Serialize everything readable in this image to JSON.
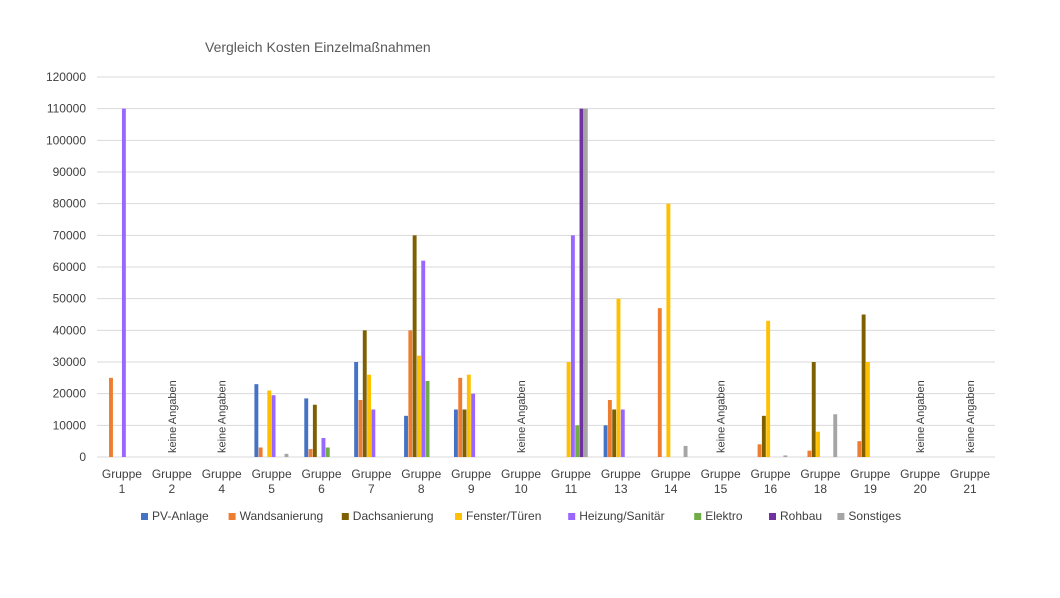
{
  "chart_data": {
    "type": "bar",
    "title": "Vergleich Kosten Einzelmaßnahmen",
    "xlabel": "",
    "ylabel": "",
    "ylim": [
      0,
      120000
    ],
    "yticks": [
      0,
      10000,
      20000,
      30000,
      40000,
      50000,
      60000,
      70000,
      80000,
      90000,
      100000,
      110000,
      120000
    ],
    "grid": true,
    "legend_position": "bottom",
    "categories": [
      [
        "Gruppe",
        "1"
      ],
      [
        "Gruppe",
        "2"
      ],
      [
        "Gruppe",
        "4"
      ],
      [
        "Gruppe",
        "5"
      ],
      [
        "Gruppe",
        "6"
      ],
      [
        "Gruppe",
        "7"
      ],
      [
        "Gruppe",
        "8"
      ],
      [
        "Gruppe",
        "9"
      ],
      [
        "Gruppe",
        "10"
      ],
      [
        "Gruppe",
        "11"
      ],
      [
        "Gruppe",
        "13"
      ],
      [
        "Gruppe",
        "14"
      ],
      [
        "Gruppe",
        "15"
      ],
      [
        "Gruppe",
        "16"
      ],
      [
        "Gruppe",
        "18"
      ],
      [
        "Gruppe",
        "19"
      ],
      [
        "Gruppe",
        "20"
      ],
      [
        "Gruppe",
        "21"
      ]
    ],
    "annotations": [
      {
        "category_index": 1,
        "text": "keine Angaben"
      },
      {
        "category_index": 2,
        "text": "keine Angaben"
      },
      {
        "category_index": 8,
        "text": "keine Angaben"
      },
      {
        "category_index": 12,
        "text": "keine Angaben"
      },
      {
        "category_index": 16,
        "text": "keine Angaben"
      },
      {
        "category_index": 17,
        "text": "keine Angaben"
      }
    ],
    "series": [
      {
        "name": "PV-Anlage",
        "color": "#4472c4",
        "values": [
          null,
          null,
          null,
          23000,
          18500,
          30000,
          13000,
          15000,
          null,
          null,
          10000,
          null,
          null,
          null,
          null,
          null,
          null,
          null
        ]
      },
      {
        "name": "Wandsanierung",
        "color": "#ed7d31",
        "values": [
          25000,
          null,
          null,
          3000,
          2500,
          18000,
          40000,
          25000,
          null,
          null,
          18000,
          47000,
          null,
          4000,
          2000,
          5000,
          null,
          null
        ]
      },
      {
        "name": "Dachsanierung",
        "color": "#7f6000",
        "values": [
          null,
          null,
          null,
          null,
          16500,
          40000,
          70000,
          15000,
          null,
          null,
          15000,
          null,
          null,
          13000,
          30000,
          45000,
          null,
          null
        ]
      },
      {
        "name": "Fenster/Türen",
        "color": "#ffc000",
        "values": [
          null,
          null,
          null,
          21000,
          null,
          26000,
          32000,
          26000,
          null,
          30000,
          50000,
          80000,
          null,
          43000,
          8000,
          30000,
          null,
          null
        ]
      },
      {
        "name": "Heizung/Sanitär",
        "color": "#9966ff",
        "values": [
          110000,
          null,
          null,
          19500,
          6000,
          15000,
          62000,
          20000,
          null,
          70000,
          15000,
          null,
          null,
          null,
          null,
          null,
          null,
          null
        ]
      },
      {
        "name": "Elektro",
        "color": "#70ad47",
        "values": [
          null,
          null,
          null,
          null,
          3000,
          null,
          24000,
          null,
          null,
          10000,
          null,
          null,
          null,
          null,
          null,
          null,
          null,
          null
        ]
      },
      {
        "name": "Rohbau",
        "color": "#7030a0",
        "values": [
          null,
          null,
          null,
          null,
          null,
          null,
          null,
          null,
          null,
          110000,
          null,
          null,
          null,
          null,
          null,
          null,
          null,
          null
        ]
      },
      {
        "name": "Sonstiges",
        "color": "#a5a5a5",
        "values": [
          null,
          null,
          null,
          1000,
          null,
          null,
          null,
          null,
          null,
          110000,
          null,
          3500,
          null,
          500,
          13500,
          null,
          null,
          null
        ]
      }
    ]
  }
}
